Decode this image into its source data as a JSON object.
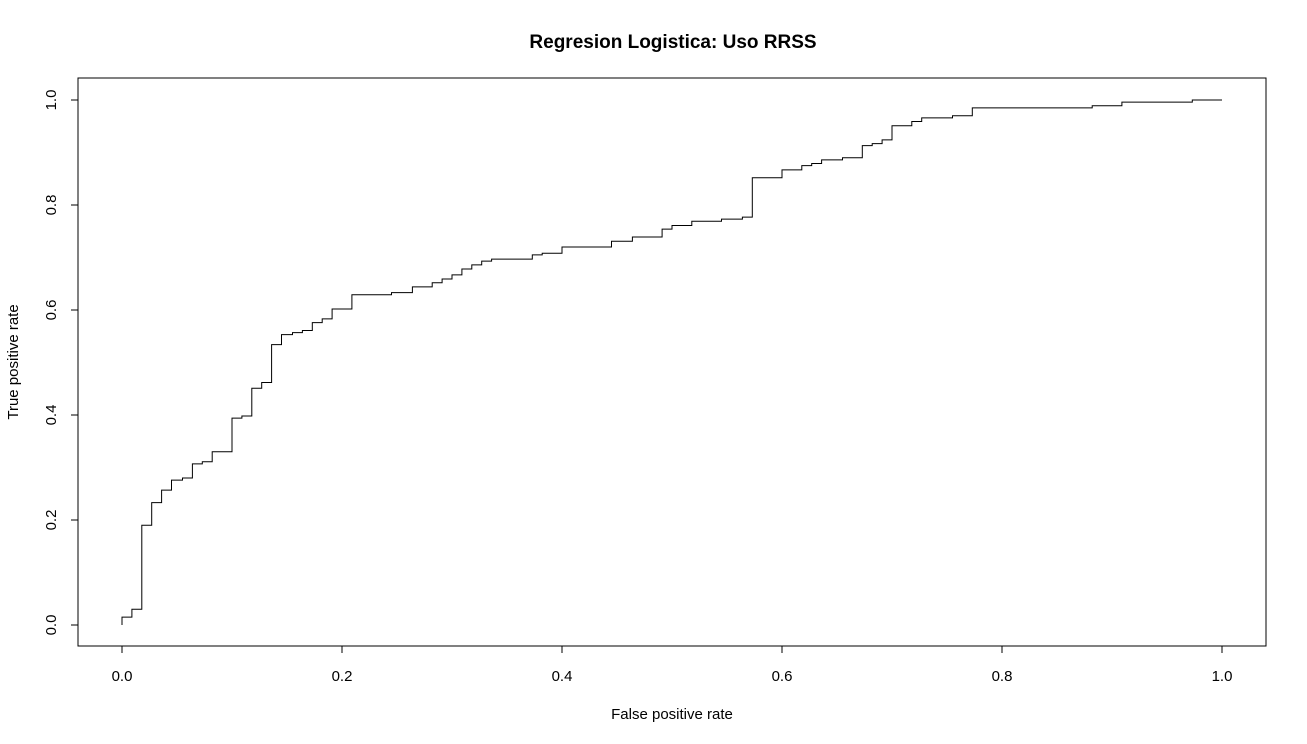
{
  "chart_data": {
    "type": "line",
    "title": "Regresion Logistica: Uso RRSS",
    "xlabel": "False positive rate",
    "ylabel": "True positive rate",
    "xlim": [
      0,
      1
    ],
    "ylim": [
      0,
      1
    ],
    "x_ticks": [
      0.0,
      0.2,
      0.4,
      0.6,
      0.8,
      1.0
    ],
    "x_tick_labels": [
      "0.0",
      "0.2",
      "0.4",
      "0.6",
      "0.8",
      "1.0"
    ],
    "y_ticks": [
      0.0,
      0.2,
      0.4,
      0.6,
      0.8,
      1.0
    ],
    "y_tick_labels": [
      "0.0",
      "0.2",
      "0.4",
      "0.6",
      "0.8",
      "1.0"
    ],
    "grid": false,
    "legend": "none",
    "line_color": "#000000",
    "series": [
      {
        "step": true,
        "x": [
          0.0,
          0.0,
          0.009,
          0.009,
          0.018,
          0.018,
          0.027,
          0.027,
          0.036,
          0.036,
          0.045,
          0.045,
          0.055,
          0.055,
          0.064,
          0.064,
          0.073,
          0.073,
          0.082,
          0.082,
          0.1,
          0.1,
          0.109,
          0.109,
          0.118,
          0.118,
          0.127,
          0.127,
          0.136,
          0.136,
          0.145,
          0.145,
          0.155,
          0.155,
          0.164,
          0.164,
          0.173,
          0.173,
          0.182,
          0.182,
          0.191,
          0.191,
          0.209,
          0.209,
          0.245,
          0.245,
          0.264,
          0.264,
          0.282,
          0.282,
          0.291,
          0.291,
          0.3,
          0.3,
          0.309,
          0.309,
          0.318,
          0.318,
          0.327,
          0.327,
          0.336,
          0.336,
          0.373,
          0.373,
          0.382,
          0.382,
          0.4,
          0.4,
          0.445,
          0.445,
          0.464,
          0.464,
          0.491,
          0.491,
          0.5,
          0.5,
          0.518,
          0.518,
          0.545,
          0.545,
          0.564,
          0.564,
          0.573,
          0.573,
          0.6,
          0.6,
          0.618,
          0.618,
          0.627,
          0.627,
          0.636,
          0.636,
          0.655,
          0.655,
          0.673,
          0.673,
          0.682,
          0.682,
          0.691,
          0.691,
          0.7,
          0.7,
          0.718,
          0.718,
          0.727,
          0.727,
          0.755,
          0.755,
          0.773,
          0.773,
          0.882,
          0.882,
          0.909,
          0.909,
          0.973,
          0.973,
          1.0
        ],
        "y": [
          0.0,
          0.015,
          0.015,
          0.03,
          0.03,
          0.19,
          0.19,
          0.233,
          0.233,
          0.257,
          0.257,
          0.276,
          0.276,
          0.28,
          0.28,
          0.307,
          0.307,
          0.311,
          0.311,
          0.33,
          0.33,
          0.394,
          0.394,
          0.398,
          0.398,
          0.451,
          0.451,
          0.462,
          0.462,
          0.534,
          0.534,
          0.553,
          0.553,
          0.557,
          0.557,
          0.561,
          0.561,
          0.576,
          0.576,
          0.583,
          0.583,
          0.602,
          0.602,
          0.629,
          0.629,
          0.633,
          0.633,
          0.644,
          0.644,
          0.652,
          0.652,
          0.659,
          0.659,
          0.667,
          0.667,
          0.678,
          0.678,
          0.686,
          0.686,
          0.693,
          0.693,
          0.697,
          0.697,
          0.705,
          0.705,
          0.708,
          0.708,
          0.72,
          0.72,
          0.731,
          0.731,
          0.739,
          0.739,
          0.754,
          0.754,
          0.761,
          0.761,
          0.769,
          0.769,
          0.773,
          0.773,
          0.777,
          0.777,
          0.852,
          0.852,
          0.867,
          0.867,
          0.875,
          0.875,
          0.879,
          0.879,
          0.886,
          0.886,
          0.89,
          0.89,
          0.913,
          0.913,
          0.917,
          0.917,
          0.924,
          0.924,
          0.951,
          0.951,
          0.959,
          0.959,
          0.966,
          0.966,
          0.97,
          0.97,
          0.985,
          0.985,
          0.989,
          0.989,
          0.996,
          0.996,
          1.0,
          1.0
        ]
      }
    ]
  }
}
